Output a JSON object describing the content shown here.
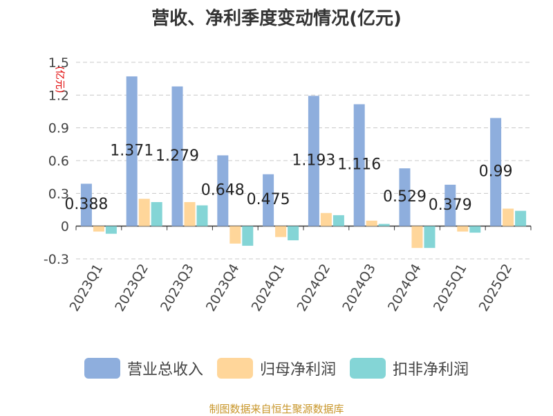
{
  "title": "营收、净利季度变动情况(亿元)",
  "source": "制图数据来自恒生聚源数据库",
  "colors": {
    "revenue": "#8eaedd",
    "net_profit": "#ffd69a",
    "deducted_profit": "#84d5d6"
  },
  "chart_data": {
    "type": "bar",
    "title": "营收、净利季度变动情况(亿元)",
    "ylabel": "(亿元)",
    "xlabel": "",
    "ylim": [
      -0.3,
      1.5
    ],
    "yticks": [
      -0.3,
      0,
      0.3,
      0.6,
      0.9,
      1.2,
      1.5
    ],
    "ytick_labels": [
      "-0.3",
      "0",
      "0.3",
      "0.6",
      "0.9",
      "1.2",
      "1.5"
    ],
    "grid": true,
    "legend_position": "bottom",
    "categories": [
      "2023Q1",
      "2023Q2",
      "2023Q3",
      "2023Q4",
      "2024Q1",
      "2024Q2",
      "2024Q3",
      "2024Q4",
      "2025Q1",
      "2025Q2"
    ],
    "series": [
      {
        "name": "营业总收入",
        "color": "#8eaedd",
        "values": [
          0.388,
          1.371,
          1.279,
          0.648,
          0.475,
          1.193,
          1.116,
          0.529,
          0.379,
          0.99
        ],
        "labels": [
          "0.388",
          "1.371",
          "1.279",
          "0.648",
          "0.475",
          "1.193",
          "1.116",
          "0.529",
          "0.379",
          "0.99"
        ]
      },
      {
        "name": "归母净利润",
        "color": "#ffd69a",
        "values": [
          -0.05,
          0.25,
          0.22,
          -0.16,
          -0.1,
          0.12,
          0.05,
          -0.2,
          -0.05,
          0.16
        ]
      },
      {
        "name": "扣非净利润",
        "color": "#84d5d6",
        "values": [
          -0.07,
          0.22,
          0.19,
          -0.18,
          -0.13,
          0.1,
          0.02,
          -0.2,
          -0.06,
          0.14
        ]
      }
    ]
  }
}
